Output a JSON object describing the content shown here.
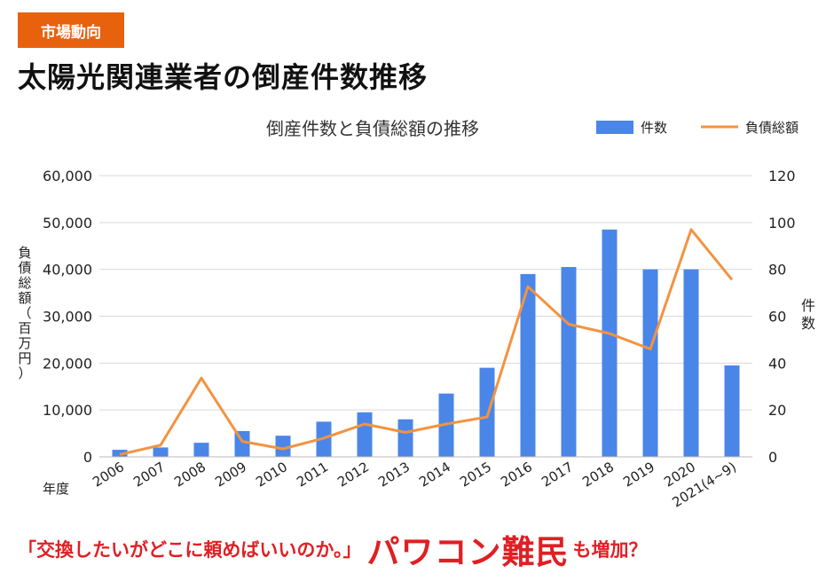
{
  "badge": "市場動向",
  "headline": "太陽光関連業者の倒産件数推移",
  "footer": {
    "quote": "「交換したいがどこに頼めばいいのか。」",
    "emphasis": "パワコン難民",
    "tail": "も増加？"
  },
  "colors": {
    "bar": "#4a86e8",
    "line": "#f39341",
    "accent": "#e8620e",
    "footer_red": "#e01f24"
  },
  "chart_data": {
    "type": "bar+line",
    "title": "倒産件数と負債総額の推移",
    "categories": [
      "2006",
      "2007",
      "2008",
      "2009",
      "2010",
      "2011",
      "2012",
      "2013",
      "2014",
      "2015",
      "2016",
      "2017",
      "2018",
      "2019",
      "2020",
      "2021(4~9)"
    ],
    "series": [
      {
        "name": "件数",
        "type": "bar",
        "axis": "right",
        "values": [
          3,
          4,
          6,
          11,
          9,
          15,
          19,
          16,
          27,
          38,
          78,
          81,
          97,
          80,
          80,
          39
        ]
      },
      {
        "name": "負債総額",
        "type": "line",
        "axis": "left",
        "values": [
          500,
          2500,
          16800,
          3300,
          1700,
          4000,
          7000,
          5200,
          7000,
          8500,
          36300,
          28300,
          26300,
          23000,
          48500,
          37800
        ]
      }
    ],
    "y_left": {
      "label_chars": [
        "負",
        "債",
        "総",
        "額",
        "（",
        "百",
        "万",
        "円",
        "）"
      ],
      "range": [
        0,
        60000
      ],
      "ticks": [
        "0",
        "10,000",
        "20,000",
        "30,000",
        "40,000",
        "50,000",
        "60,000"
      ]
    },
    "y_right": {
      "label_chars": [
        "件",
        "数"
      ],
      "range": [
        0,
        120
      ],
      "ticks": [
        "0",
        "20",
        "40",
        "60",
        "80",
        "100",
        "120"
      ]
    },
    "x_label": "年度",
    "grid": true,
    "legend": "top-right"
  }
}
